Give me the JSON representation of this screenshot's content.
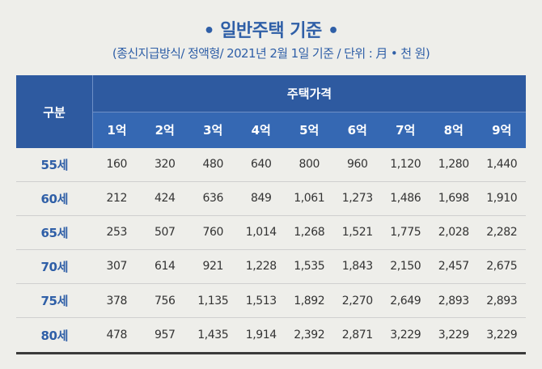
{
  "title": "• 일반주택 기준 •",
  "subtitle": "(종신지급방식/ 정액형/ 2021년 2월 1일 기준 / 단위 : 月 • 천 원)",
  "table": {
    "row_header": "구분",
    "group_header": "주택가격",
    "columns": [
      "1억",
      "2억",
      "3억",
      "4억",
      "5억",
      "6억",
      "7억",
      "8억",
      "9억"
    ],
    "rows": [
      {
        "age": "55세",
        "values": [
          "160",
          "320",
          "480",
          "640",
          "800",
          "960",
          "1,120",
          "1,280",
          "1,440"
        ]
      },
      {
        "age": "60세",
        "values": [
          "212",
          "424",
          "636",
          "849",
          "1,061",
          "1,273",
          "1,486",
          "1,698",
          "1,910"
        ]
      },
      {
        "age": "65세",
        "values": [
          "253",
          "507",
          "760",
          "1,014",
          "1,268",
          "1,521",
          "1,775",
          "2,028",
          "2,282"
        ]
      },
      {
        "age": "70세",
        "values": [
          "307",
          "614",
          "921",
          "1,228",
          "1,535",
          "1,843",
          "2,150",
          "2,457",
          "2,675"
        ]
      },
      {
        "age": "75세",
        "values": [
          "378",
          "756",
          "1,135",
          "1,513",
          "1,892",
          "2,270",
          "2,649",
          "2,893",
          "2,893"
        ]
      },
      {
        "age": "80세",
        "values": [
          "478",
          "957",
          "1,435",
          "1,914",
          "2,392",
          "2,871",
          "3,229",
          "3,229",
          "3,229"
        ]
      }
    ]
  }
}
